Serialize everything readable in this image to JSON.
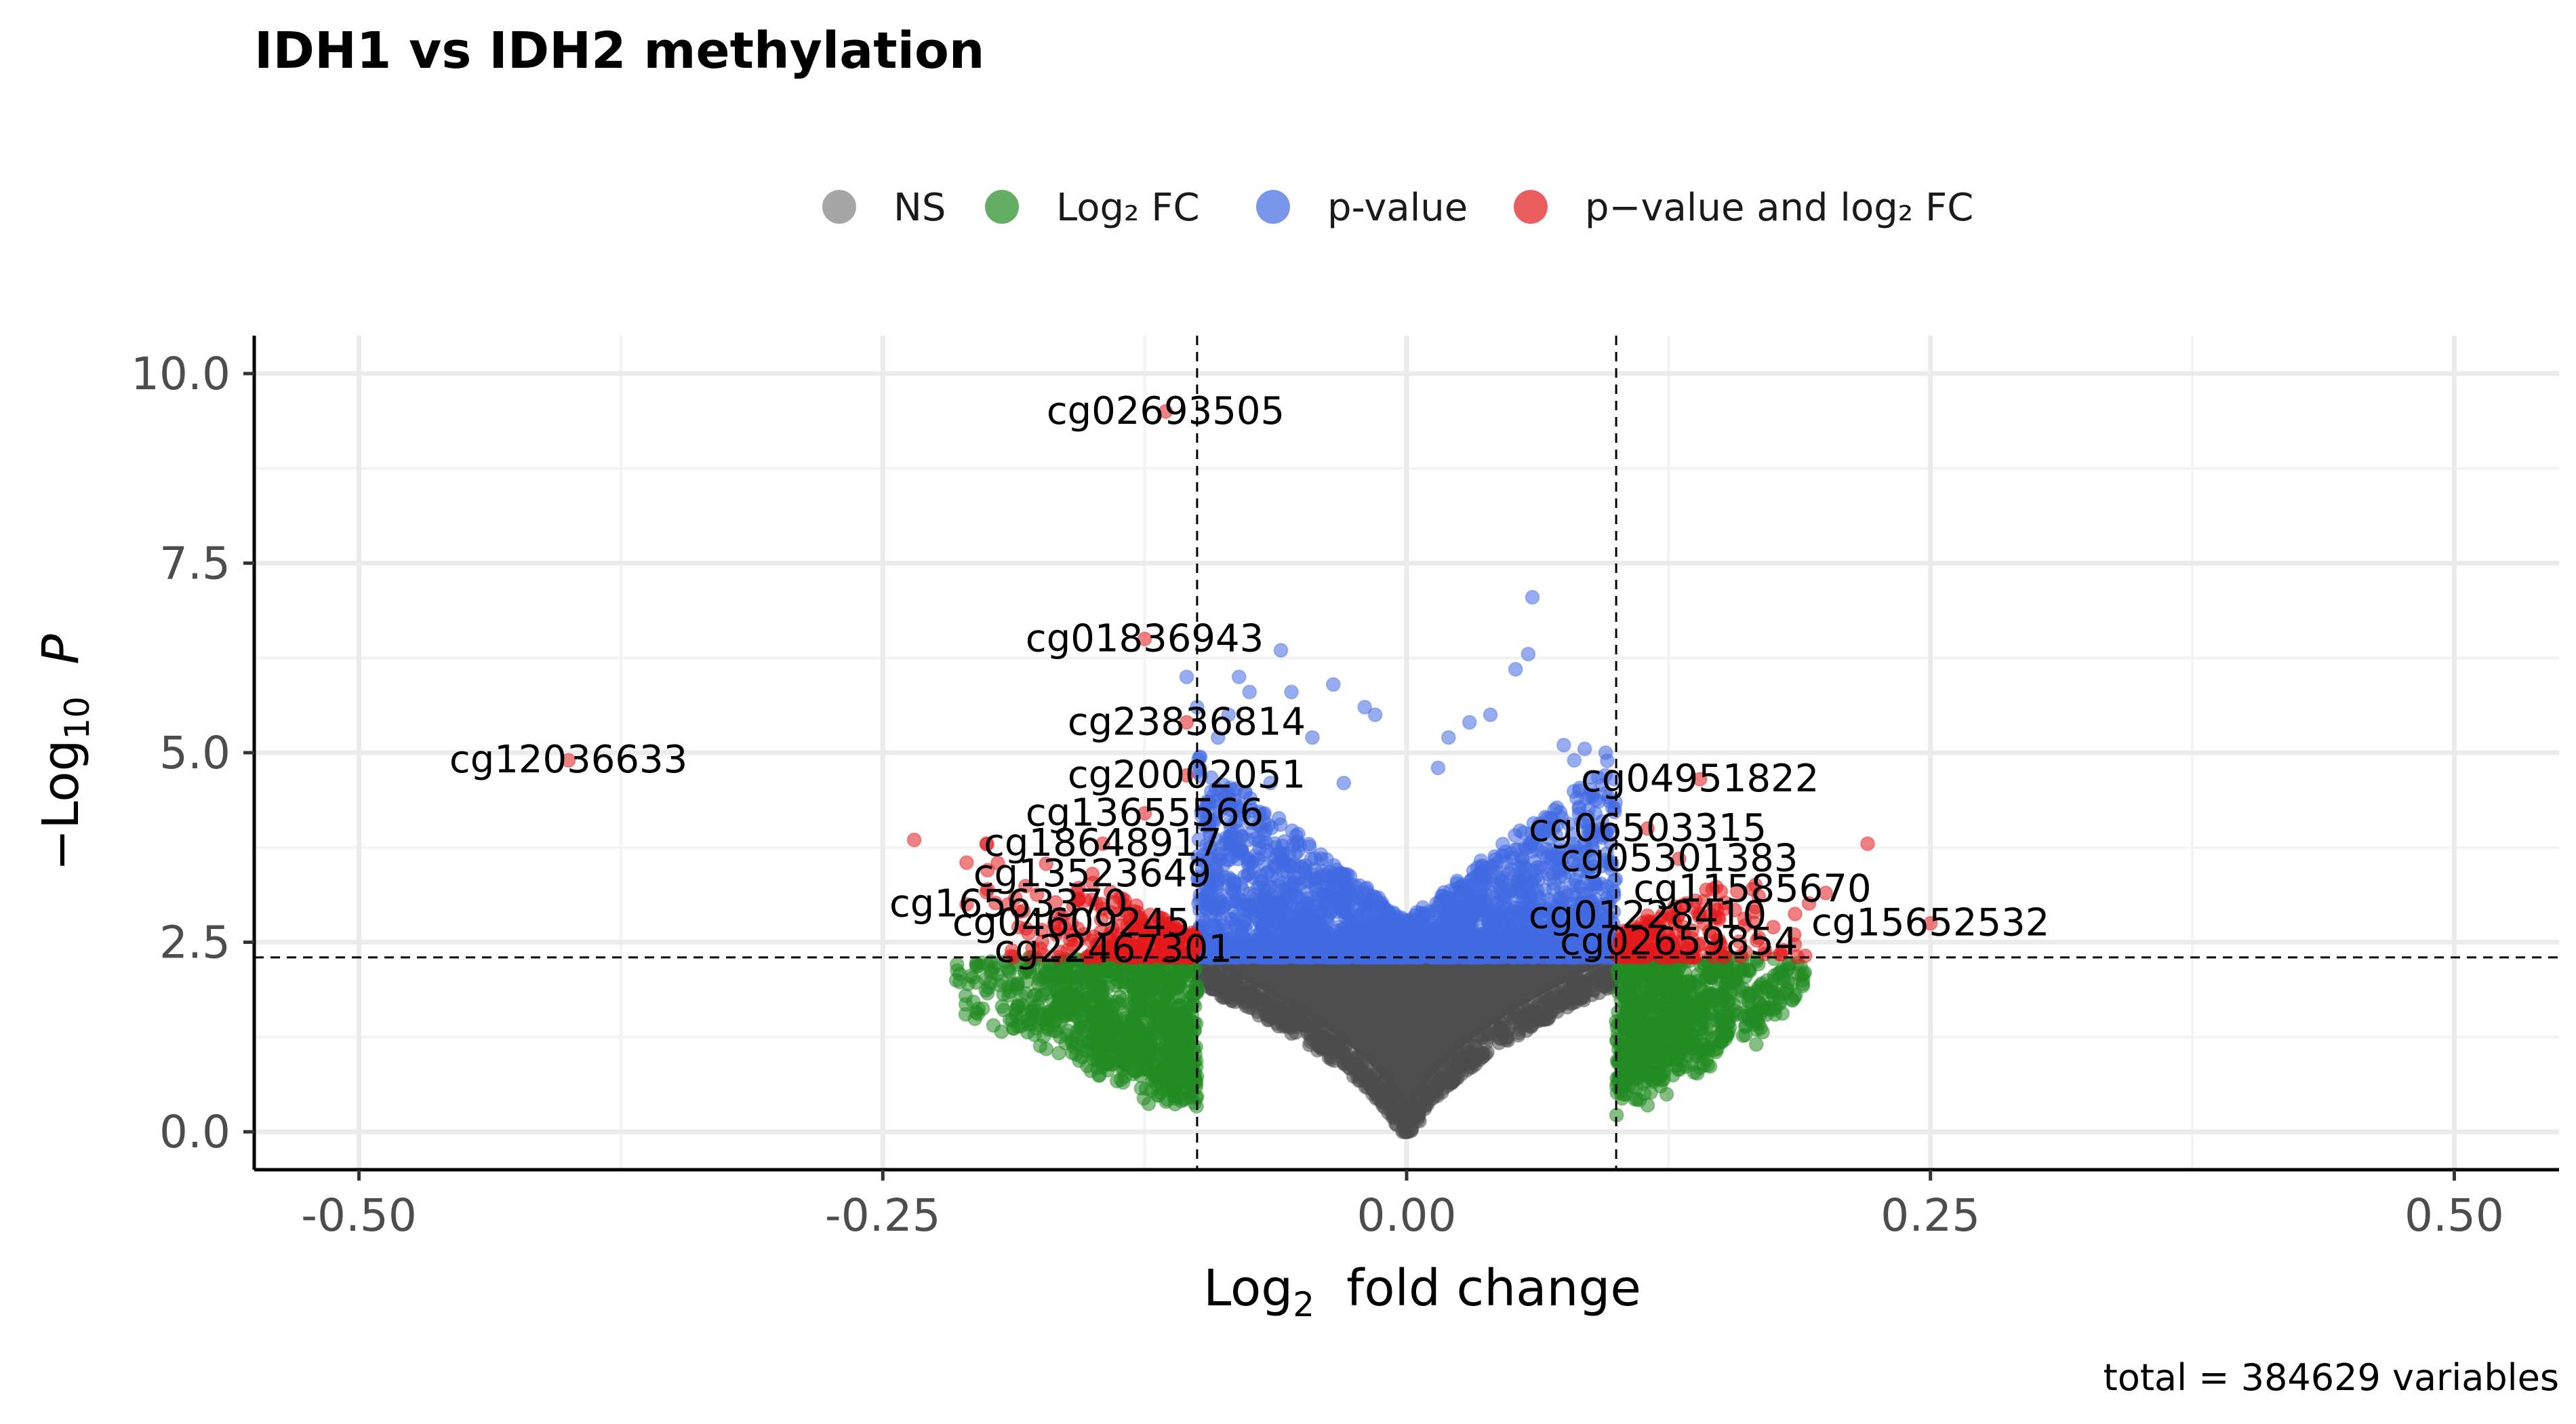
{
  "chart_data": {
    "type": "scatter",
    "title": "IDH1 vs IDH2 methylation",
    "xlabel": "Log₂ fold change",
    "ylabel": "−Log₁₀ P",
    "xlim": [
      -0.55,
      0.55
    ],
    "ylim": [
      -0.5,
      10.5
    ],
    "x_ticks": [
      -0.5,
      -0.25,
      0.0,
      0.25,
      0.5
    ],
    "x_tick_labels": [
      "-0.50",
      "-0.25",
      "0.00",
      "0.25",
      "0.50"
    ],
    "y_ticks": [
      0.0,
      2.5,
      5.0,
      7.5,
      10.0
    ],
    "y_tick_labels": [
      "0.0",
      "2.5",
      "5.0",
      "7.5",
      "10.0"
    ],
    "grid": true,
    "legend_position": "top",
    "fc_cutoff": 0.1,
    "p_cutoff_log": 2.3,
    "caption": "total = 384629 variables",
    "legend": [
      {
        "key": "ns",
        "label": "NS",
        "color": "#808080"
      },
      {
        "key": "fc",
        "label": "Log₂ FC",
        "color": "#228b22"
      },
      {
        "key": "p",
        "label": "p-value",
        "color": "#4169e1"
      },
      {
        "key": "both",
        "label": "p−value and log₂ FC",
        "color": "#e31a1c"
      }
    ],
    "colors": {
      "ns": "#4d4d4d",
      "fc": "#228b22",
      "p": "#4169e1",
      "both": "#e31a1c"
    },
    "labeled_points": [
      {
        "name": "cg02693505",
        "x": -0.115,
        "y": 9.5
      },
      {
        "name": "cg01836943",
        "x": -0.125,
        "y": 6.5
      },
      {
        "name": "cg23836814",
        "x": -0.105,
        "y": 5.4
      },
      {
        "name": "cg12036633",
        "x": -0.4,
        "y": 4.9
      },
      {
        "name": "cg20002051",
        "x": -0.105,
        "y": 4.7
      },
      {
        "name": "cg13655566",
        "x": -0.125,
        "y": 4.2
      },
      {
        "name": "cg18648917",
        "x": -0.145,
        "y": 3.8
      },
      {
        "name": "cg13523649",
        "x": -0.15,
        "y": 3.4
      },
      {
        "name": "cg16563370",
        "x": -0.19,
        "y": 3.0
      },
      {
        "name": "cg04609245",
        "x": -0.16,
        "y": 2.75
      },
      {
        "name": "cg22467301",
        "x": -0.14,
        "y": 2.4
      },
      {
        "name": "cg04951822",
        "x": 0.14,
        "y": 4.65
      },
      {
        "name": "cg06503315",
        "x": 0.115,
        "y": 4.0
      },
      {
        "name": "cg05301383",
        "x": 0.13,
        "y": 3.6
      },
      {
        "name": "cg11585670",
        "x": 0.165,
        "y": 3.2
      },
      {
        "name": "cg01228410",
        "x": 0.115,
        "y": 2.85
      },
      {
        "name": "cg15652532",
        "x": 0.25,
        "y": 2.75
      },
      {
        "name": "cg02659854",
        "x": 0.13,
        "y": 2.5
      }
    ],
    "series_summary": [
      {
        "key": "ns",
        "x_range": [
          -0.1,
          0.1
        ],
        "y_range": [
          0,
          2.3
        ]
      },
      {
        "key": "fc",
        "x_range": [
          -0.22,
          0.2
        ],
        "y_range": [
          0,
          2.3
        ]
      },
      {
        "key": "p",
        "x_range": [
          -0.1,
          0.1
        ],
        "y_range": [
          2.3,
          7.0
        ]
      },
      {
        "key": "both",
        "x_range": [
          -0.4,
          0.25
        ],
        "y_range": [
          2.3,
          9.5
        ]
      }
    ]
  }
}
